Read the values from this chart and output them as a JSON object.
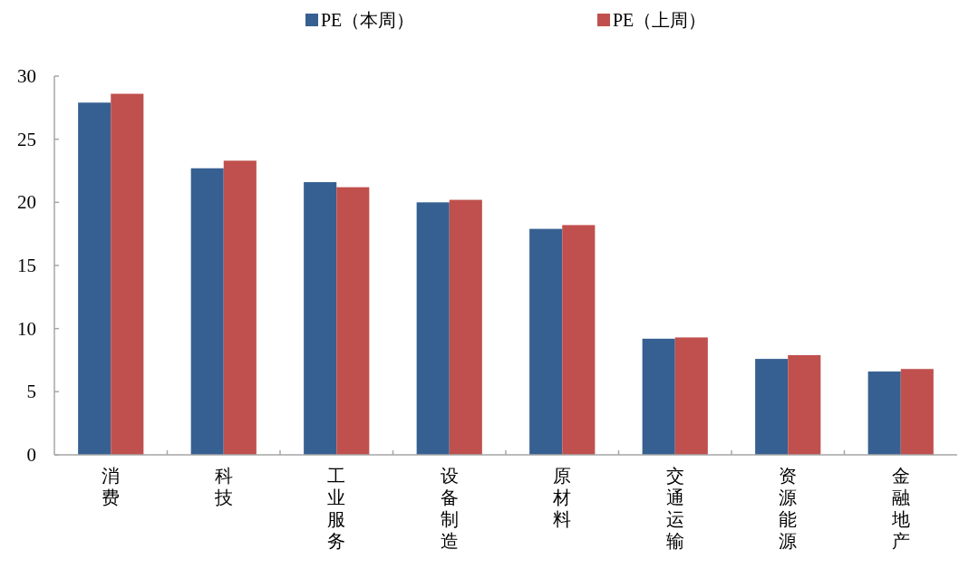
{
  "chart_data": {
    "type": "bar",
    "categories": [
      "消费",
      "科技",
      "工业服务",
      "设备制造",
      "原材料",
      "交通运输",
      "资源能源",
      "金融地产"
    ],
    "series": [
      {
        "name": "PE（本周）",
        "color": "#366092",
        "values": [
          27.9,
          22.7,
          21.6,
          20.0,
          17.9,
          9.2,
          7.6,
          6.6
        ]
      },
      {
        "name": "PE（上周）",
        "color": "#c0504d",
        "values": [
          28.6,
          23.3,
          21.2,
          20.2,
          18.2,
          9.3,
          7.9,
          6.8
        ]
      }
    ],
    "ylim": [
      0,
      30
    ],
    "yticks": [
      0,
      5,
      10,
      15,
      20,
      25,
      30
    ],
    "grid": false,
    "legend": "top"
  }
}
